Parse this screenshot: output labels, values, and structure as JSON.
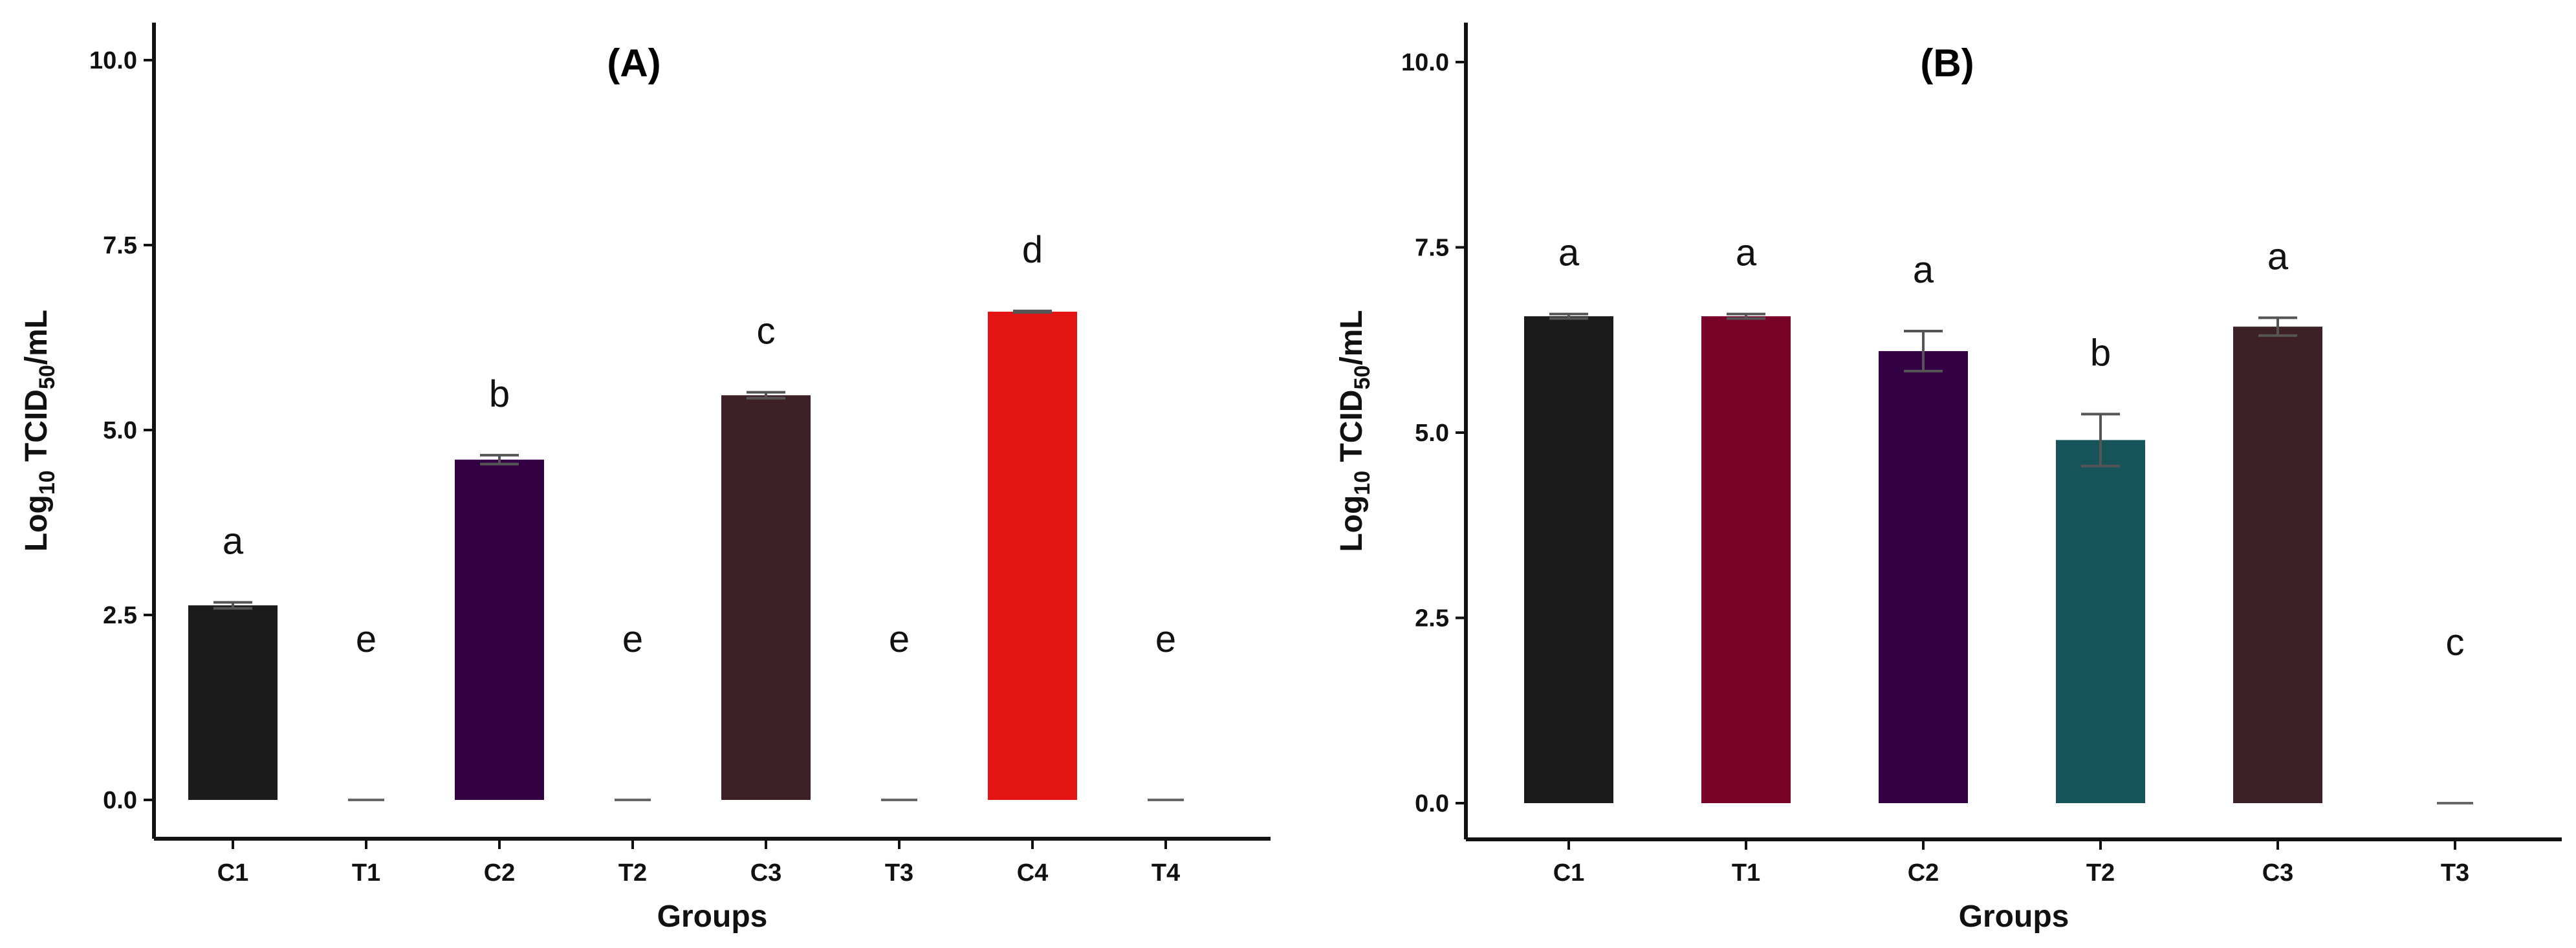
{
  "chart_data": [
    {
      "type": "bar",
      "title": "(A)",
      "xlabel": "Groups",
      "ylabel_main": "Log",
      "ylabel_sub1": "10",
      "ylabel_mid": " TCID",
      "ylabel_sub2": "50",
      "ylabel_tail": "/mL",
      "ylim": [
        0,
        10.5
      ],
      "yticks": [
        0.0,
        2.5,
        5.0,
        7.5,
        10.0
      ],
      "ytick_labels": [
        "0.0",
        "2.5",
        "5.0",
        "7.5",
        "10.0"
      ],
      "categories": [
        "C1",
        "T1",
        "C2",
        "T2",
        "C3",
        "T3",
        "C4",
        "T4"
      ],
      "values": [
        2.63,
        0,
        4.6,
        0,
        5.47,
        0,
        6.6,
        0
      ],
      "errors": [
        0.04,
        0,
        0.06,
        0,
        0.04,
        0,
        0.01,
        0
      ],
      "letters": [
        "a",
        "e",
        "b",
        "e",
        "c",
        "e",
        "d",
        "e"
      ],
      "colors": [
        "#1b1b1b",
        "#1b1b1b",
        "#330044",
        "#330044",
        "#3e2127",
        "#3e2127",
        "#e41415",
        "#e41415"
      ]
    },
    {
      "type": "bar",
      "title": "(B)",
      "xlabel": "Groups",
      "ylabel_main": "Log",
      "ylabel_sub1": "10",
      "ylabel_mid": " TCID",
      "ylabel_sub2": "50",
      "ylabel_tail": "/mL",
      "ylim": [
        0,
        10.5
      ],
      "yticks": [
        0.0,
        2.5,
        5.0,
        7.5,
        10.0
      ],
      "ytick_labels": [
        "0.0",
        "2.5",
        "5.0",
        "7.5",
        "10.0"
      ],
      "categories": [
        "C1",
        "T1",
        "C2",
        "T2",
        "C3",
        "T3"
      ],
      "values": [
        6.57,
        6.57,
        6.1,
        4.9,
        6.43,
        0
      ],
      "errors": [
        0.03,
        0.03,
        0.27,
        0.35,
        0.12,
        0
      ],
      "letters": [
        "a",
        "a",
        "a",
        "b",
        "a",
        "c"
      ],
      "colors": [
        "#1b1b1b",
        "#7a0127",
        "#330044",
        "#17545a",
        "#3e2127",
        "#3e2127"
      ]
    }
  ]
}
